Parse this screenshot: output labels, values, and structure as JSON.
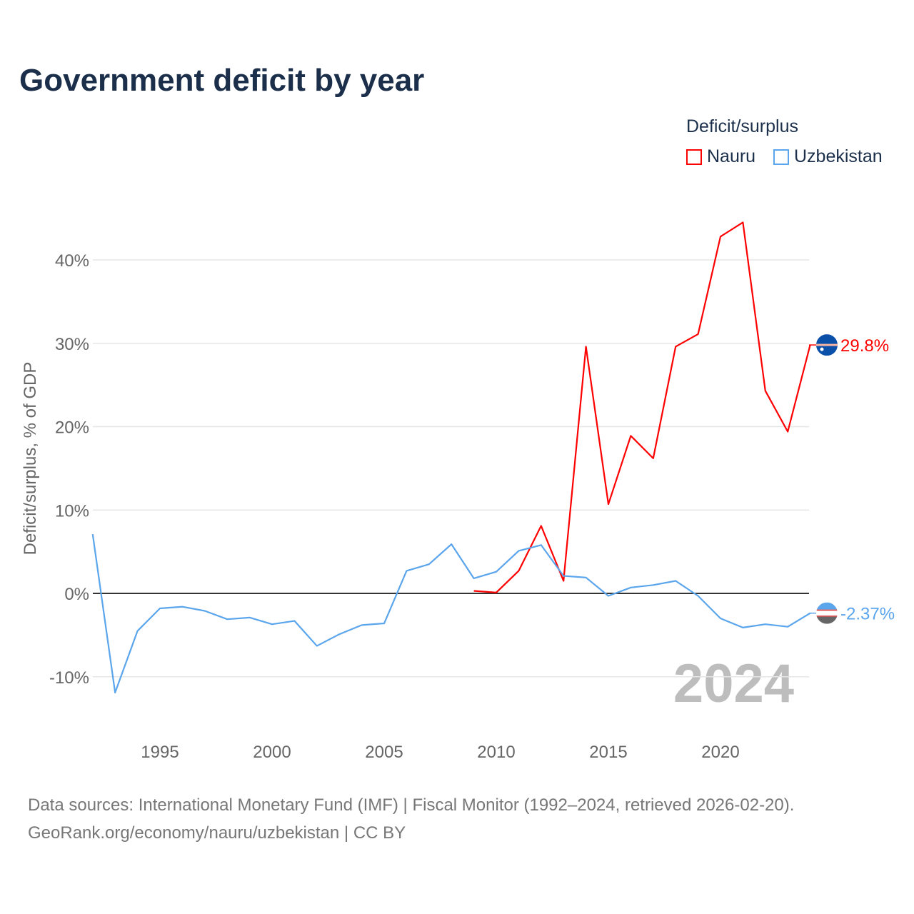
{
  "chart_data": {
    "type": "line",
    "title": "Government deficit by year",
    "xlabel": "",
    "ylabel": "Deficit/surplus, % of GDP",
    "xlim": [
      1992,
      2024
    ],
    "ylim": [
      -13,
      47
    ],
    "y_ticks": [
      -10,
      0,
      10,
      20,
      30,
      40
    ],
    "y_tick_labels": [
      "-10%",
      "0%",
      "10%",
      "20%",
      "30%",
      "40%"
    ],
    "x_ticks": [
      1995,
      2000,
      2005,
      2010,
      2015,
      2020
    ],
    "x_tick_labels": [
      "1995",
      "2000",
      "2005",
      "2010",
      "2015",
      "2020"
    ],
    "legend_title": "Deficit/surplus",
    "legend_placement": "top-right",
    "year_watermark": "2024",
    "series": [
      {
        "name": "Nauru",
        "color": "#ff0000",
        "end_label": "29.8%",
        "x": [
          2009,
          2010,
          2011,
          2012,
          2013,
          2014,
          2015,
          2016,
          2017,
          2018,
          2019,
          2020,
          2021,
          2022,
          2023,
          2024
        ],
        "values": [
          0.3,
          0.1,
          2.7,
          8.1,
          1.5,
          29.6,
          10.7,
          18.9,
          16.2,
          29.6,
          31.1,
          42.8,
          44.5,
          24.3,
          19.4,
          29.8
        ]
      },
      {
        "name": "Uzbekistan",
        "color": "#5aa5ec",
        "end_label": "-2.37%",
        "x": [
          1992,
          1993,
          1994,
          1995,
          1996,
          1997,
          1998,
          1999,
          2000,
          2001,
          2002,
          2003,
          2004,
          2005,
          2006,
          2007,
          2008,
          2009,
          2010,
          2011,
          2012,
          2013,
          2014,
          2015,
          2016,
          2017,
          2018,
          2019,
          2020,
          2021,
          2022,
          2023,
          2024
        ],
        "values": [
          7.1,
          -11.9,
          -4.5,
          -1.8,
          -1.6,
          -2.1,
          -3.1,
          -2.9,
          -3.7,
          -3.3,
          -6.3,
          -4.9,
          -3.8,
          -3.6,
          2.7,
          3.5,
          5.9,
          1.8,
          2.6,
          5.1,
          5.8,
          2.1,
          1.9,
          -0.3,
          0.7,
          1.0,
          1.5,
          -0.3,
          -3.0,
          -4.1,
          -3.7,
          -4.0,
          -2.37
        ]
      }
    ],
    "source": "Data sources: International Monetary Fund (IMF) | Fiscal Monitor (1992–2024, retrieved 2026-02-20).",
    "credit": "GeoRank.org/economy/nauru/uzbekistan | CC BY"
  }
}
